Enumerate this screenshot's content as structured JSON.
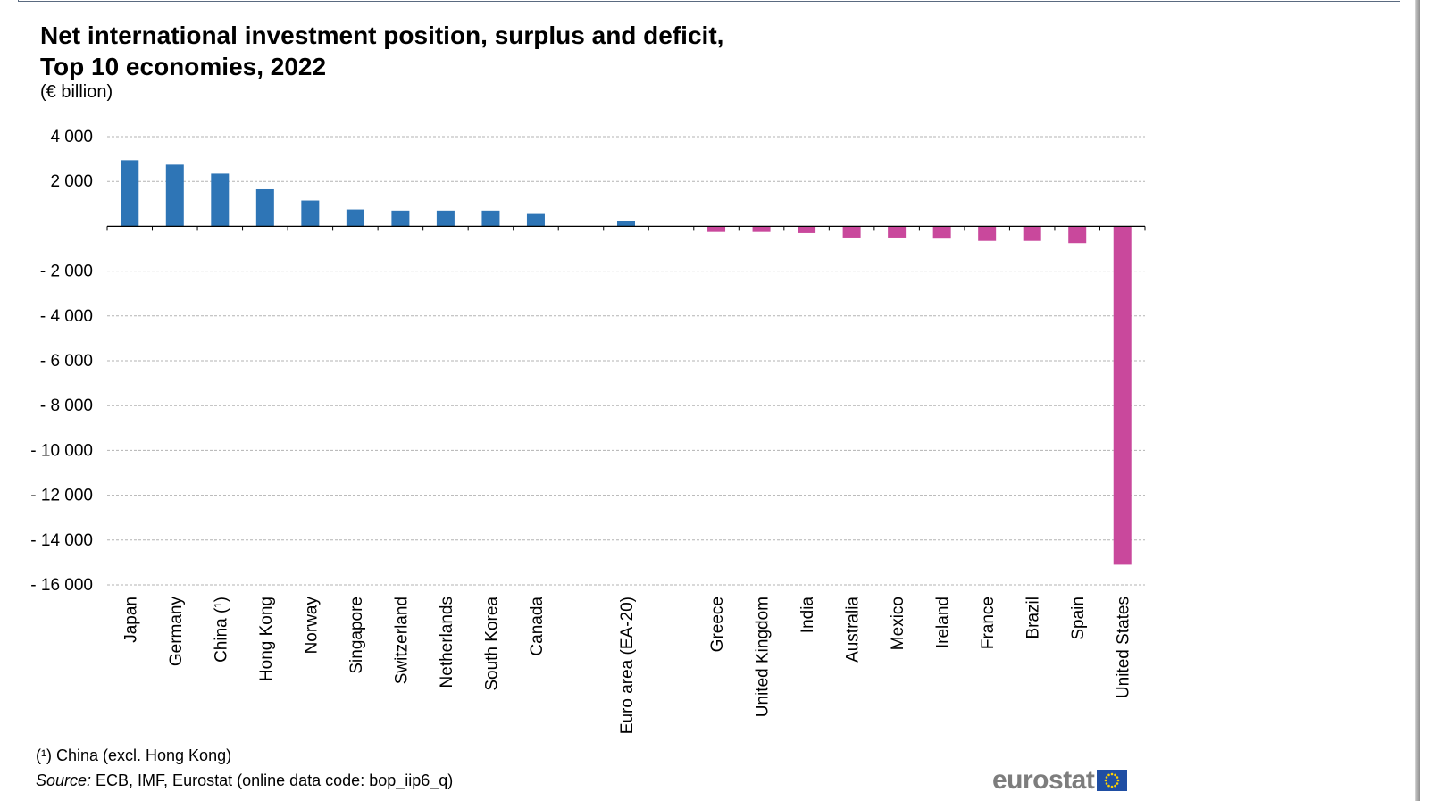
{
  "chart_data": {
    "type": "bar",
    "title": "Net international investment position, surplus and deficit,\nTop 10 economies, 2022",
    "unit_label": "(€ billion)",
    "ylim": [
      -16000,
      4000
    ],
    "yticks": [
      4000,
      2000,
      0,
      -2000,
      -4000,
      -6000,
      -8000,
      -10000,
      -12000,
      -14000,
      -16000
    ],
    "ytick_labels": [
      "4 000",
      "2 000",
      "",
      "- 2 000",
      "- 4 000",
      "- 6 000",
      "- 8 000",
      "- 10 000",
      "- 12 000",
      "- 14 000",
      "- 16 000"
    ],
    "grid": true,
    "categories": [
      "Japan",
      "Germany",
      "China (¹)",
      "Hong Kong",
      "Norway",
      "Singapore",
      "Switzerland",
      "Netherlands",
      "South Korea",
      "Canada",
      "",
      "Euro area (EA-20)",
      "",
      "Greece",
      "United Kingdom",
      "India",
      "Australia",
      "Mexico",
      "Ireland",
      "France",
      "Brazil",
      "Spain",
      "United States"
    ],
    "values": [
      2950,
      2750,
      2350,
      1650,
      1150,
      750,
      700,
      700,
      700,
      550,
      null,
      250,
      null,
      -250,
      -250,
      -300,
      -500,
      -500,
      -550,
      -650,
      -650,
      -750,
      -15100
    ],
    "colors": {
      "positive": "#2e75b6",
      "negative": "#c9489c"
    },
    "footnote": "(¹) China  (excl. Hong Kong)",
    "source_label": "Source:",
    "source_text": " ECB, IMF,  Eurostat (online data code: bop_iip6_q)"
  },
  "logo": {
    "text": "eurostat",
    "icon": "eu-flag-icon"
  }
}
